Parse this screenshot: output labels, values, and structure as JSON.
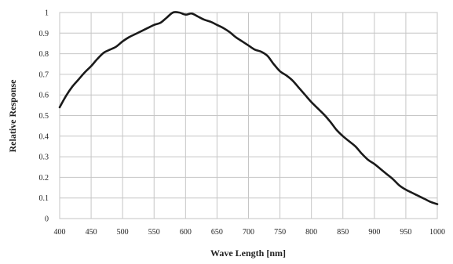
{
  "chart_data": {
    "type": "line",
    "title": "",
    "xlabel": "Wave Length [nm]",
    "ylabel": "Relative Response",
    "xlim": [
      400,
      1000
    ],
    "ylim": [
      0,
      1
    ],
    "grid": true,
    "legend": "none",
    "x_ticks": [
      400,
      450,
      500,
      550,
      600,
      650,
      700,
      750,
      800,
      850,
      900,
      950,
      1000
    ],
    "x_tick_labels": [
      "400",
      "450",
      "500",
      "550",
      "600",
      "650",
      "700",
      "750",
      "800",
      "850",
      "900",
      "950",
      "1000"
    ],
    "y_ticks": [
      0,
      0.1,
      0.2,
      0.3,
      0.4,
      0.5,
      0.6,
      0.7,
      0.8,
      0.9,
      1
    ],
    "y_tick_labels": [
      "0",
      "0.1",
      "0.2",
      "0.3",
      "0.4",
      "0.5",
      "0.6",
      "0.7",
      "0.8",
      "0.9",
      "1"
    ],
    "series": [
      {
        "color": "#1a1a1a",
        "x": [
          400,
          410,
          420,
          430,
          440,
          450,
          460,
          470,
          480,
          490,
          500,
          510,
          520,
          530,
          540,
          550,
          560,
          570,
          580,
          590,
          600,
          610,
          620,
          630,
          640,
          650,
          660,
          670,
          680,
          690,
          700,
          710,
          720,
          730,
          740,
          750,
          760,
          770,
          780,
          790,
          800,
          810,
          820,
          830,
          840,
          850,
          860,
          870,
          880,
          890,
          900,
          910,
          920,
          930,
          940,
          950,
          960,
          970,
          980,
          990,
          1000
        ],
        "values": [
          0.54,
          0.595,
          0.64,
          0.675,
          0.71,
          0.74,
          0.775,
          0.805,
          0.82,
          0.835,
          0.86,
          0.88,
          0.895,
          0.91,
          0.925,
          0.94,
          0.95,
          0.975,
          1.0,
          1.0,
          0.99,
          0.995,
          0.98,
          0.965,
          0.955,
          0.94,
          0.925,
          0.905,
          0.88,
          0.86,
          0.84,
          0.82,
          0.81,
          0.79,
          0.75,
          0.715,
          0.695,
          0.67,
          0.635,
          0.6,
          0.565,
          0.535,
          0.505,
          0.47,
          0.43,
          0.4,
          0.375,
          0.35,
          0.315,
          0.285,
          0.265,
          0.24,
          0.215,
          0.19,
          0.16,
          0.14,
          0.125,
          0.11,
          0.095,
          0.08,
          0.07
        ]
      }
    ]
  }
}
